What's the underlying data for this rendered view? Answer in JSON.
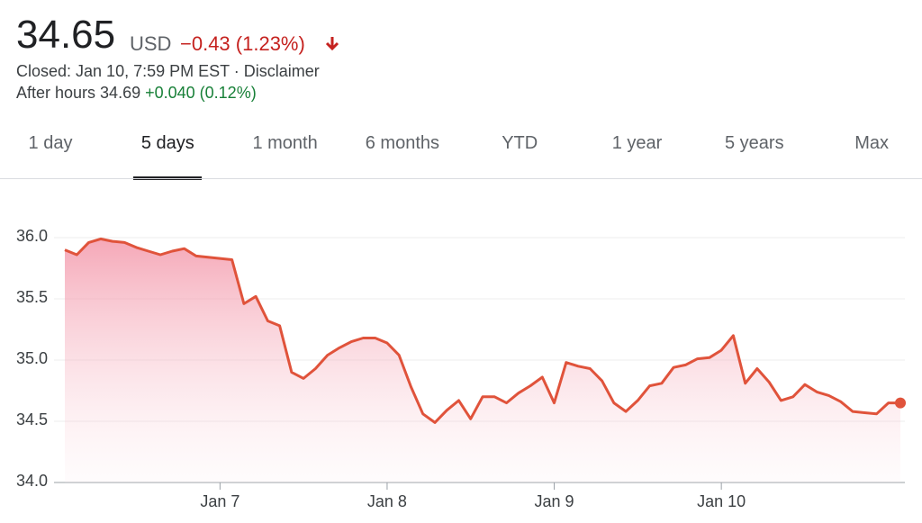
{
  "header": {
    "price": "34.65",
    "currency": "USD",
    "change": "−0.43 (1.23%)",
    "status": "Closed: Jan 10, 7:59 PM EST · Disclaimer",
    "after_hours_label": "After hours 34.69",
    "after_hours_change": "+0.040 (0.12%)"
  },
  "tabs": {
    "items": [
      "1 day",
      "5 days",
      "1 month",
      "6 months",
      "YTD",
      "1 year",
      "5 years",
      "Max"
    ],
    "selected": 1
  },
  "chart_data": {
    "type": "line",
    "color": "#e0533b",
    "grid": true,
    "categories": [
      null,
      null,
      null,
      null,
      null,
      null,
      null,
      null,
      null,
      null,
      null,
      null,
      null,
      "Jan 7",
      null,
      null,
      null,
      null,
      null,
      null,
      null,
      null,
      null,
      null,
      null,
      null,
      null,
      "Jan 8",
      null,
      null,
      null,
      null,
      null,
      null,
      null,
      null,
      null,
      null,
      null,
      null,
      null,
      "Jan 9",
      null,
      null,
      null,
      null,
      null,
      null,
      null,
      null,
      null,
      null,
      null,
      null,
      null,
      "Jan 10",
      null,
      null,
      null,
      null,
      null,
      null,
      null,
      null,
      null,
      null,
      null,
      null,
      null,
      null,
      null
    ],
    "values": [
      35.9,
      35.86,
      35.96,
      35.99,
      35.97,
      35.96,
      35.92,
      35.89,
      35.86,
      35.89,
      35.91,
      35.85,
      35.84,
      35.83,
      35.82,
      35.46,
      35.52,
      35.32,
      35.28,
      34.9,
      34.85,
      34.93,
      35.04,
      35.1,
      35.15,
      35.18,
      35.18,
      35.14,
      35.04,
      34.78,
      34.56,
      34.49,
      34.59,
      34.67,
      34.52,
      34.7,
      34.7,
      34.65,
      34.73,
      34.79,
      34.86,
      34.65,
      34.98,
      34.95,
      34.93,
      34.83,
      34.65,
      34.58,
      34.67,
      34.79,
      34.81,
      34.94,
      34.96,
      35.01,
      35.02,
      35.08,
      35.2,
      34.81,
      34.93,
      34.82,
      34.67,
      34.7,
      34.8,
      34.74,
      34.71,
      34.66,
      34.58,
      34.57,
      34.56,
      34.65,
      34.65
    ],
    "ylim": [
      34,
      36.2
    ],
    "yticks": [
      {
        "value": 34,
        "label": "34.0"
      },
      34.5,
      {
        "value": 35,
        "label": "35.0"
      },
      35.5,
      {
        "value": 36,
        "label": "36.0"
      }
    ]
  }
}
